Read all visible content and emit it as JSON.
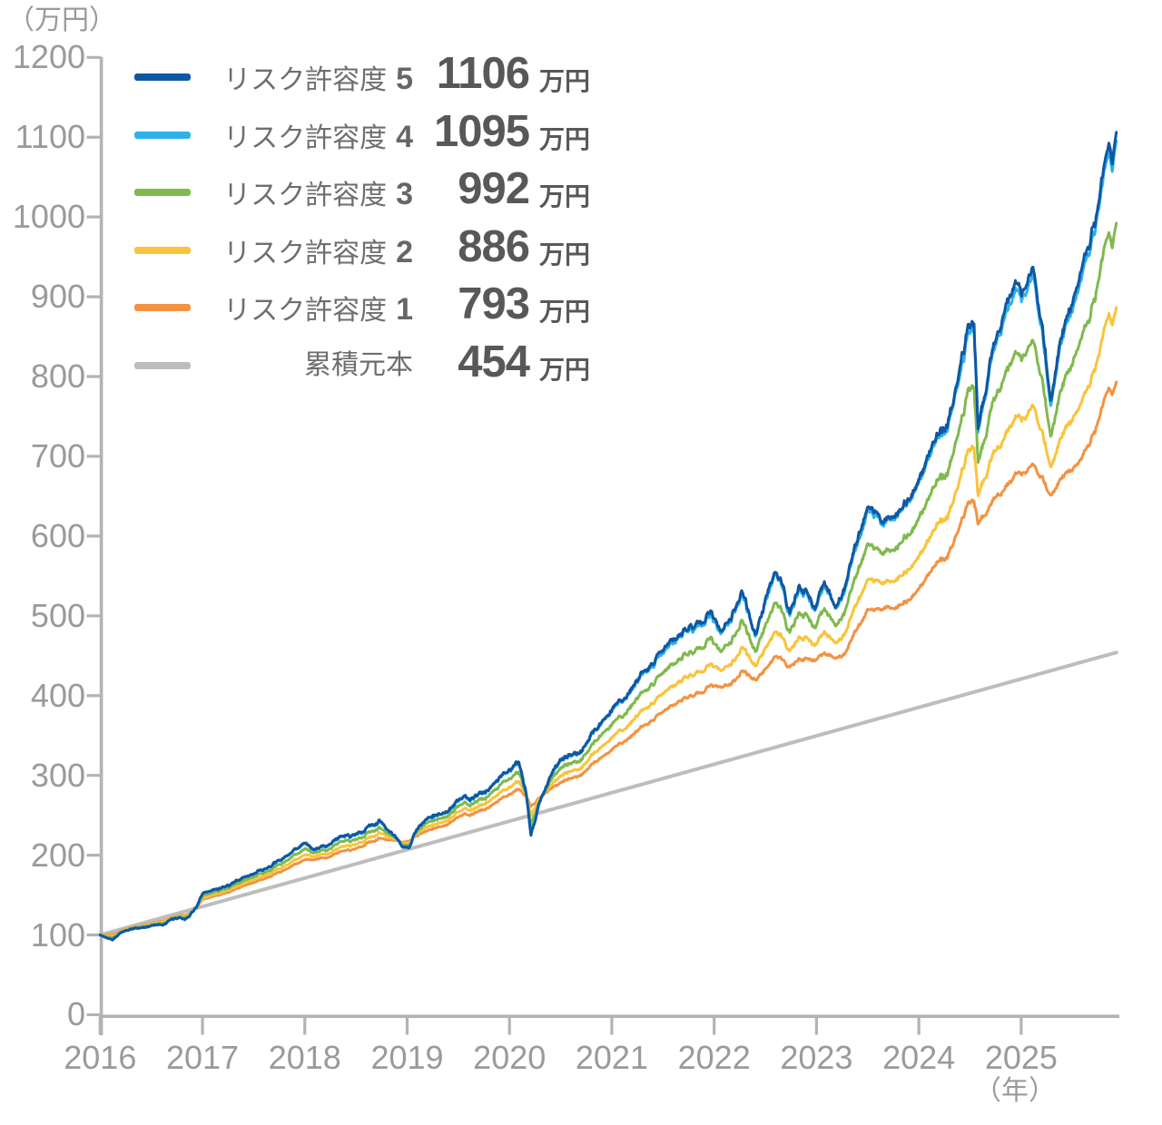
{
  "y_axis": {
    "unit_label": "（万円）",
    "ticks": [
      "1200",
      "1100",
      "1000",
      "900",
      "800",
      "700",
      "600",
      "500",
      "400",
      "300",
      "200",
      "100",
      "0"
    ],
    "min": 0,
    "max": 1200,
    "step": 100
  },
  "x_axis": {
    "unit_label": "（年）",
    "ticks": [
      "2016",
      "2017",
      "2018",
      "2019",
      "2020",
      "2021",
      "2022",
      "2023",
      "2024",
      "2025"
    ]
  },
  "legend": {
    "rows": [
      {
        "id": "risk5",
        "label": "リスク許容度",
        "level": "5",
        "value": "1106",
        "unit": "万円",
        "color": "#0f57a3"
      },
      {
        "id": "risk4",
        "label": "リスク許容度",
        "level": "4",
        "value": "1095",
        "unit": "万円",
        "color": "#2db3e9"
      },
      {
        "id": "risk3",
        "label": "リスク許容度",
        "level": "3",
        "value": "992",
        "unit": "万円",
        "color": "#80b94e"
      },
      {
        "id": "risk2",
        "label": "リスク許容度",
        "level": "2",
        "value": "886",
        "unit": "万円",
        "color": "#f9c43b"
      },
      {
        "id": "risk1",
        "label": "リスク許容度",
        "level": "1",
        "value": "793",
        "unit": "万円",
        "color": "#f39242"
      },
      {
        "id": "principal",
        "label": "累積元本",
        "level": "",
        "value": "454",
        "unit": "万円",
        "color": "#bdbdbd"
      }
    ]
  },
  "chart_data": {
    "type": "line",
    "title": "",
    "ylabel": "（万円）",
    "xlabel": "（年）",
    "x_range": [
      2016.0,
      2025.93
    ],
    "ylim": [
      0,
      1200
    ],
    "grid": false,
    "legend_position": "top-left",
    "principal": {
      "name": "累積元本",
      "color": "#bdbdbd",
      "start_value": 100,
      "end_value": 454
    },
    "base_series_anchors": [
      [
        2016,
        100
      ],
      [
        2016.05,
        97
      ],
      [
        2016.12,
        95
      ],
      [
        2016.2,
        103
      ],
      [
        2016.3,
        107
      ],
      [
        2016.45,
        110
      ],
      [
        2016.55,
        114
      ],
      [
        2016.62,
        112
      ],
      [
        2016.7,
        119
      ],
      [
        2016.78,
        122
      ],
      [
        2016.83,
        120
      ],
      [
        2016.88,
        126
      ],
      [
        2016.95,
        138
      ],
      [
        2017,
        151
      ],
      [
        2017.15,
        158
      ],
      [
        2017.3,
        166
      ],
      [
        2017.5,
        177
      ],
      [
        2017.7,
        189
      ],
      [
        2017.85,
        200
      ],
      [
        2018,
        216
      ],
      [
        2018.09,
        203
      ],
      [
        2018.2,
        212
      ],
      [
        2018.35,
        222
      ],
      [
        2018.5,
        228
      ],
      [
        2018.6,
        235
      ],
      [
        2018.73,
        243
      ],
      [
        2018.85,
        228
      ],
      [
        2018.95,
        213
      ],
      [
        2019.02,
        208
      ],
      [
        2019.1,
        235
      ],
      [
        2019.25,
        248
      ],
      [
        2019.4,
        255
      ],
      [
        2019.5,
        268
      ],
      [
        2019.65,
        272
      ],
      [
        2019.8,
        284
      ],
      [
        2019.95,
        305
      ],
      [
        2020.09,
        316
      ],
      [
        2020.16,
        280
      ],
      [
        2020.21,
        224
      ],
      [
        2020.3,
        272
      ],
      [
        2020.4,
        300
      ],
      [
        2020.5,
        318
      ],
      [
        2020.6,
        326
      ],
      [
        2020.7,
        330
      ],
      [
        2020.8,
        352
      ],
      [
        2020.9,
        368
      ],
      [
        2021,
        383
      ],
      [
        2021.1,
        397
      ],
      [
        2021.25,
        420
      ],
      [
        2021.4,
        442
      ],
      [
        2021.5,
        455
      ],
      [
        2021.6,
        468
      ],
      [
        2021.7,
        478
      ],
      [
        2021.8,
        488
      ],
      [
        2021.9,
        498
      ],
      [
        2021.97,
        513
      ],
      [
        2022.06,
        478
      ],
      [
        2022.17,
        502
      ],
      [
        2022.27,
        532
      ],
      [
        2022.33,
        510
      ],
      [
        2022.4,
        477
      ],
      [
        2022.5,
        520
      ],
      [
        2022.6,
        548
      ],
      [
        2022.68,
        535
      ],
      [
        2022.74,
        506
      ],
      [
        2022.83,
        540
      ],
      [
        2022.9,
        535
      ],
      [
        2022.98,
        502
      ],
      [
        2023.08,
        540
      ],
      [
        2023.19,
        510
      ],
      [
        2023.3,
        548
      ],
      [
        2023.42,
        600
      ],
      [
        2023.51,
        648
      ],
      [
        2023.58,
        635
      ],
      [
        2023.65,
        615
      ],
      [
        2023.73,
        628
      ],
      [
        2023.8,
        636
      ],
      [
        2023.9,
        650
      ],
      [
        2024,
        668
      ],
      [
        2024.1,
        700
      ],
      [
        2024.18,
        728
      ],
      [
        2024.28,
        742
      ],
      [
        2024.38,
        795
      ],
      [
        2024.47,
        855
      ],
      [
        2024.54,
        878
      ],
      [
        2024.58,
        738
      ],
      [
        2024.63,
        768
      ],
      [
        2024.7,
        822
      ],
      [
        2024.8,
        858
      ],
      [
        2024.88,
        900
      ],
      [
        2024.95,
        920
      ],
      [
        2025,
        900
      ],
      [
        2025.06,
        916
      ],
      [
        2025.12,
        928
      ],
      [
        2025.18,
        880
      ],
      [
        2025.24,
        820
      ],
      [
        2025.29,
        757
      ],
      [
        2025.35,
        820
      ],
      [
        2025.44,
        868
      ],
      [
        2025.53,
        902
      ],
      [
        2025.63,
        945
      ],
      [
        2025.73,
        1005
      ],
      [
        2025.8,
        1048
      ],
      [
        2025.86,
        1098
      ],
      [
        2025.89,
        1078
      ],
      [
        2025.93,
        1106
      ]
    ],
    "series": [
      {
        "name": "リスク許容度 5",
        "final_value": 1106,
        "k": 1.0,
        "color": "#0f57a3"
      },
      {
        "name": "リスク許容度 4",
        "final_value": 1095,
        "k": 0.983,
        "color": "#2db3e9"
      },
      {
        "name": "リスク許容度 3",
        "final_value": 992,
        "k": 0.825,
        "color": "#80b94e"
      },
      {
        "name": "リスク許容度 2",
        "final_value": 886,
        "k": 0.663,
        "color": "#f9c43b"
      },
      {
        "name": "リスク許容度 1",
        "final_value": 793,
        "k": 0.52,
        "color": "#f39242"
      }
    ],
    "drawdown_cushion": 0.55,
    "axis_color": "#b3b3b3",
    "label_color": "#9a9a9a"
  }
}
